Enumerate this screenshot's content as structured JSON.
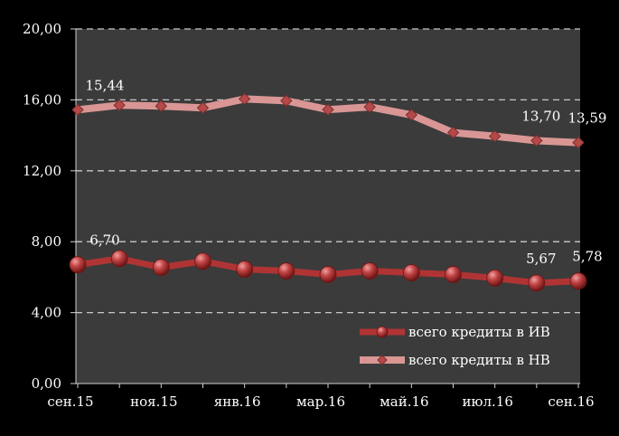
{
  "chart_data": {
    "type": "line",
    "title": "",
    "xlabel": "",
    "ylabel": "",
    "ylim": [
      0,
      20
    ],
    "yticks": [
      "0,00",
      "4,00",
      "8,00",
      "12,00",
      "16,00",
      "20,00"
    ],
    "x_tick_labels": [
      "сен.15",
      "ноя.15",
      "янв.16",
      "мар.16",
      "май.16",
      "июл.16",
      "сен.16"
    ],
    "x_tick_indices": [
      0,
      2,
      4,
      6,
      8,
      10,
      12
    ],
    "categories": [
      "сен.15",
      "окт.15",
      "ноя.15",
      "дек.15",
      "янв.16",
      "фев.16",
      "мар.16",
      "апр.16",
      "май.16",
      "июн.16",
      "июл.16",
      "авг.16",
      "сен.16"
    ],
    "grid": true,
    "legend_position": "bottom-right",
    "series": [
      {
        "name": "всего кредиты в ИВ",
        "color": "#b03434",
        "marker": "circle",
        "values": [
          6.7,
          7.05,
          6.55,
          6.9,
          6.45,
          6.35,
          6.15,
          6.35,
          6.25,
          6.15,
          5.95,
          5.67,
          5.78
        ],
        "labels": [
          {
            "index": 0,
            "text": "6,70"
          },
          {
            "index": 11,
            "text": "5,67"
          },
          {
            "index": 12,
            "text": "5,78"
          }
        ]
      },
      {
        "name": "всего кредиты в НВ",
        "color": "#d99694",
        "marker": "diamond",
        "values": [
          15.44,
          15.7,
          15.65,
          15.55,
          16.05,
          15.95,
          15.45,
          15.6,
          15.15,
          14.15,
          13.95,
          13.7,
          13.59
        ],
        "labels": [
          {
            "index": 0,
            "text": "15,44"
          },
          {
            "index": 11,
            "text": "13,70"
          },
          {
            "index": 12,
            "text": "13,59"
          }
        ]
      }
    ]
  }
}
